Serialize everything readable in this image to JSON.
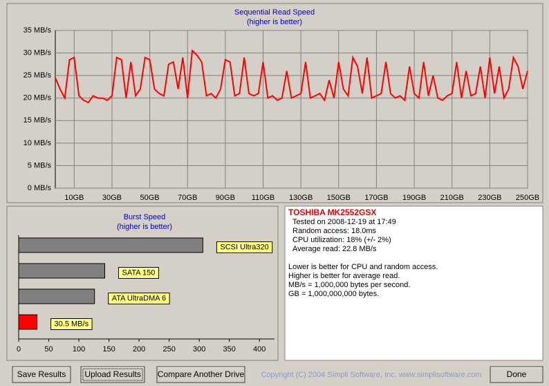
{
  "chart_data": [
    {
      "type": "line",
      "title": "Sequential Read Speed",
      "subtitle": "(higher is better)",
      "x": [
        0,
        2.5,
        5,
        7.5,
        10,
        12.5,
        15,
        17.5,
        20,
        22.5,
        25,
        27.5,
        30,
        32.5,
        35,
        37.5,
        40,
        42.5,
        45,
        47.5,
        50,
        52.5,
        55,
        57.5,
        60,
        62.5,
        65,
        67.5,
        70,
        72.5,
        75,
        77.5,
        80,
        82.5,
        85,
        87.5,
        90,
        92.5,
        95,
        97.5,
        100,
        102.5,
        105,
        107.5,
        110,
        112.5,
        115,
        117.5,
        120,
        122.5,
        125,
        127.5,
        130,
        132.5,
        135,
        137.5,
        140,
        142.5,
        145,
        147.5,
        150,
        152.5,
        155,
        157.5,
        160,
        162.5,
        165,
        167.5,
        170,
        172.5,
        175,
        177.5,
        180,
        182.5,
        185,
        187.5,
        190,
        192.5,
        195,
        197.5,
        200,
        202.5,
        205,
        207.5,
        210,
        212.5,
        215,
        217.5,
        220,
        222.5,
        225,
        227.5,
        230,
        232.5,
        235,
        237.5,
        240,
        242.5,
        245,
        247.5,
        250
      ],
      "values": [
        24.5,
        22,
        20,
        28.5,
        29,
        20.5,
        19.5,
        19,
        20.5,
        20,
        20,
        19.5,
        20.5,
        29,
        28.5,
        20,
        28,
        20.5,
        22,
        29,
        28.5,
        22,
        21,
        20.5,
        27.5,
        28,
        22,
        29,
        20,
        30.5,
        29.5,
        28,
        20.5,
        21,
        20,
        22,
        28.5,
        28,
        20.5,
        21,
        29,
        21,
        20.5,
        21,
        28,
        20,
        20.5,
        19.5,
        20,
        26,
        20,
        20.5,
        21,
        28,
        20,
        20.5,
        21,
        19.5,
        24,
        20,
        28,
        22,
        20.5,
        29,
        27,
        21,
        29,
        20,
        20.5,
        21,
        28,
        21,
        20,
        20.5,
        19.5,
        27,
        21,
        20,
        28,
        20.5,
        25,
        20,
        19.5,
        20.5,
        21,
        28,
        20,
        26,
        20.5,
        21,
        27,
        20,
        29,
        21,
        27,
        20,
        22,
        29,
        27,
        22,
        26
      ],
      "color": "#ff0000",
      "xlim": [
        0,
        250
      ],
      "xticks": [
        {
          "value": 10,
          "label": "10GB"
        },
        {
          "value": 30,
          "label": "30GB"
        },
        {
          "value": 50,
          "label": "50GB"
        },
        {
          "value": 70,
          "label": "70GB"
        },
        {
          "value": 90,
          "label": "90GB"
        },
        {
          "value": 110,
          "label": "110GB"
        },
        {
          "value": 130,
          "label": "130GB"
        },
        {
          "value": 150,
          "label": "150GB"
        },
        {
          "value": 170,
          "label": "170GB"
        },
        {
          "value": 190,
          "label": "190GB"
        },
        {
          "value": 210,
          "label": "210GB"
        },
        {
          "value": 230,
          "label": "230GB"
        },
        {
          "value": 250,
          "label": "250GB"
        }
      ],
      "ylim": [
        0,
        35
      ],
      "yticks": [
        {
          "value": 0,
          "label": "0 MB/s"
        },
        {
          "value": 5,
          "label": "5 MB/s"
        },
        {
          "value": 10,
          "label": "10 MB/s"
        },
        {
          "value": 15,
          "label": "15 MB/s"
        },
        {
          "value": 20,
          "label": "20 MB/s"
        },
        {
          "value": 25,
          "label": "25 MB/s"
        },
        {
          "value": 30,
          "label": "30 MB/s"
        },
        {
          "value": 35,
          "label": "35 MB/s"
        }
      ],
      "grid": true
    },
    {
      "type": "bar",
      "orientation": "horizontal",
      "title": "Burst Speed",
      "subtitle": "(higher is better)",
      "categories": [
        "SCSI Ultra320",
        "SATA 150",
        "ATA UltraDMA 6",
        null
      ],
      "values": [
        306,
        143,
        126,
        30.5
      ],
      "value_labels": [
        null,
        null,
        null,
        "30.5 MB/s"
      ],
      "colors": [
        "#808080",
        "#808080",
        "#808080",
        "#ff0000"
      ],
      "xlim": [
        0,
        425
      ],
      "xticks": [
        0,
        50,
        100,
        150,
        200,
        250,
        300,
        350,
        400
      ]
    }
  ],
  "drive": {
    "name": "TOSHIBA MK2552GSX",
    "details": [
      "Tested on 2008-12-19 at 17:49",
      "Random access: 18.0ms",
      "CPU utilization: 18% (+/- 2%)",
      "Average read: 22.8 MB/s"
    ],
    "notes": [
      "Lower is better for CPU and random access.",
      "Higher is better for average read.",
      "MB/s = 1,000,000 bytes per second.",
      "GB = 1,000,000,000 bytes."
    ]
  },
  "buttons": [
    "Save Results",
    "Upload Results",
    "Compare Another Drive",
    "Done"
  ],
  "copyright": "Copyright (C) 2004 Simpli Software, Inc. www.simplisoftware.com"
}
